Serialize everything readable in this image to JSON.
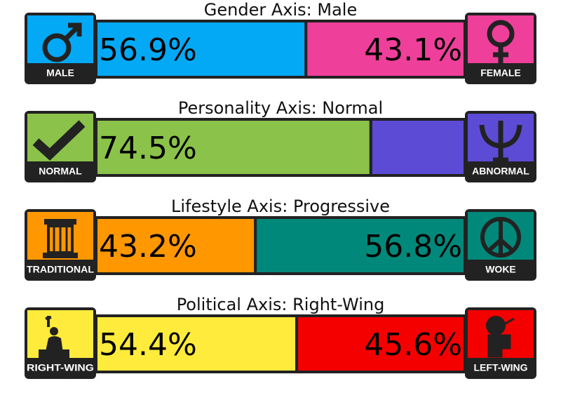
{
  "axes": [
    {
      "title": "Gender Axis: Male",
      "left": {
        "name": "MALE",
        "color": "#03a9f4",
        "value": 56.9,
        "label": "56.9%"
      },
      "right": {
        "name": "FEMALE",
        "color": "#ee3f9a",
        "value": 43.1,
        "label": "43.1%"
      }
    },
    {
      "title": "Personality Axis: Normal",
      "left": {
        "name": "NORMAL",
        "color": "#8bc34a",
        "value": 74.5,
        "label": "74.5%"
      },
      "right": {
        "name": "ABNORMAL",
        "color": "#5b4bd5",
        "value": 25.5
      }
    },
    {
      "title": "Lifestyle Axis: Progressive",
      "left": {
        "name": "TRADITIONAL",
        "color": "#ff9800",
        "value": 43.2,
        "label": "43.2%"
      },
      "right": {
        "name": "WOKE",
        "color": "#00897b",
        "value": 56.8,
        "label": "56.8%"
      }
    },
    {
      "title": "Political Axis: Right-Wing",
      "left": {
        "name": "RIGHT-WING",
        "color": "#ffeb3b",
        "value": 54.4,
        "label": "54.4%"
      },
      "right": {
        "name": "LEFT-WING",
        "color": "#f40000",
        "value": 45.6,
        "label": "45.6%"
      }
    }
  ]
}
